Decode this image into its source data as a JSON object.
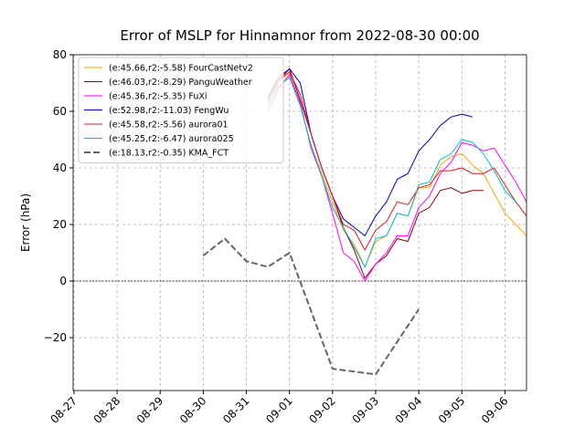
{
  "chart_data": {
    "type": "line",
    "title": "Error of MSLP for Hinnamnor from 2022-08-30 00:00",
    "y_label": "Error (hPa)",
    "x": [
      4.5,
      4.75,
      5.0,
      5.25,
      5.5,
      5.75,
      6.0,
      6.25,
      6.5,
      6.75,
      7.0,
      7.25,
      7.5,
      7.75,
      8.0,
      8.25,
      8.5,
      8.75,
      9.0,
      9.25,
      9.5,
      9.75,
      10.0,
      10.25,
      10.5
    ],
    "xlim": [
      -0.02,
      10.5
    ],
    "xticks": [
      {
        "value": 0,
        "label": "08-27"
      },
      {
        "value": 1,
        "label": "08-28"
      },
      {
        "value": 2,
        "label": "08-29"
      },
      {
        "value": 3,
        "label": "08-30"
      },
      {
        "value": 4,
        "label": "08-31"
      },
      {
        "value": 5,
        "label": "09-01"
      },
      {
        "value": 6,
        "label": "09-02"
      },
      {
        "value": 7,
        "label": "09-03"
      },
      {
        "value": 8,
        "label": "09-04"
      },
      {
        "value": 9,
        "label": "09-05"
      },
      {
        "value": 10,
        "label": "09-06"
      }
    ],
    "ylim": [
      -38.7,
      80
    ],
    "yticks": [
      {
        "value": -20,
        "label": "−20"
      },
      0,
      20,
      40,
      60,
      80
    ],
    "grid": true,
    "hline": 0,
    "legend": "upper left",
    "series": [
      {
        "name": "(e:45.66,r2:-5.58) FourCastNetv2",
        "color": "#ffa500",
        "values": [
          63,
          70,
          74,
          62,
          48,
          38,
          28,
          18,
          13,
          5,
          14,
          16,
          24,
          23,
          33,
          33,
          41,
          44,
          45,
          41,
          38,
          31,
          24,
          20,
          16
        ]
      },
      {
        "name": "(e:46.03,r2:-8.29) PanguWeather",
        "color": "#8b0000",
        "values": [
          64,
          71,
          75,
          64,
          52,
          40,
          30,
          19,
          11,
          1,
          6,
          9,
          15,
          14,
          24,
          26,
          32,
          33,
          31,
          32,
          32,
          null,
          null,
          null,
          null
        ]
      },
      {
        "name": "(e:45.36,r2:-5.35) FuXi",
        "color": "#ff00ff",
        "values": [
          60,
          68,
          73,
          63,
          47,
          37,
          24,
          10,
          7,
          0,
          6,
          10,
          16,
          16,
          26,
          30,
          38,
          42,
          49,
          48,
          46,
          47,
          41,
          35,
          28
        ]
      },
      {
        "name": "(e:52.98,r2:-11.03) FengWu",
        "color": "#0000cd",
        "values": [
          65,
          72,
          75,
          70,
          52,
          40,
          30,
          22,
          19,
          16,
          23,
          28,
          36,
          38,
          46,
          50,
          55,
          58,
          59,
          58,
          null,
          null,
          null,
          null,
          null
        ]
      },
      {
        "name": "(e:45.58,r2:-5.56) aurora01",
        "color": "#e31a1c",
        "values": [
          64,
          71,
          74,
          66,
          52,
          40,
          30,
          20,
          18,
          11,
          18,
          21,
          28,
          27,
          33,
          34,
          39,
          39,
          40,
          38,
          38,
          40,
          34,
          28,
          23
        ]
      },
      {
        "name": "(e:45.25,r2:-6.47) aurora025",
        "color": "#00bcd4",
        "values": [
          62,
          69,
          72,
          62,
          48,
          37,
          26,
          19,
          12,
          5,
          15,
          16,
          24,
          23,
          34,
          35,
          43,
          45,
          50,
          49,
          45,
          39,
          32,
          28,
          null
        ]
      },
      {
        "name": "(e:18.13,r2:-0.35) KMA_FCT",
        "color": "#666666",
        "dashed": true,
        "x": [
          3,
          3.5,
          4,
          4.5,
          5,
          6,
          7,
          8
        ],
        "values": [
          9,
          15,
          7,
          5,
          10,
          -31,
          -33,
          -10
        ]
      }
    ]
  }
}
